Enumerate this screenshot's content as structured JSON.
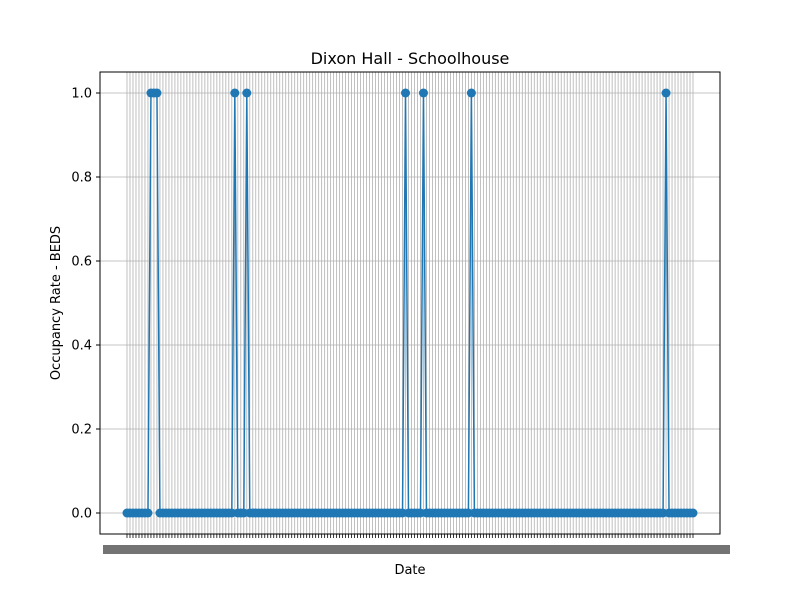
{
  "chart_data": {
    "type": "line",
    "title": "Dixon Hall - Schoolhouse",
    "xlabel": "Date",
    "ylabel": "Occupancy Rate - BEDS",
    "ylim": [
      0,
      1
    ],
    "yticks": [
      0.0,
      0.2,
      0.4,
      0.6,
      0.8,
      1.0
    ],
    "ytick_labels": [
      "0.0",
      "0.2",
      "0.4",
      "0.6",
      "0.8",
      "1.0"
    ],
    "xticks_note": "x tick labels are dense and overlapping (one per date) and are not legible",
    "grid": true,
    "legend": "none",
    "marker": "circle",
    "color": "#1f77b4",
    "n_points": 190,
    "x_index": [
      0,
      8,
      9,
      10,
      36,
      40,
      92,
      98,
      114,
      179
    ],
    "series": [
      {
        "points_with_value_1": [
          8,
          9,
          10,
          36,
          40,
          93,
          99,
          115,
          180
        ],
        "default_value": 0
      }
    ]
  }
}
